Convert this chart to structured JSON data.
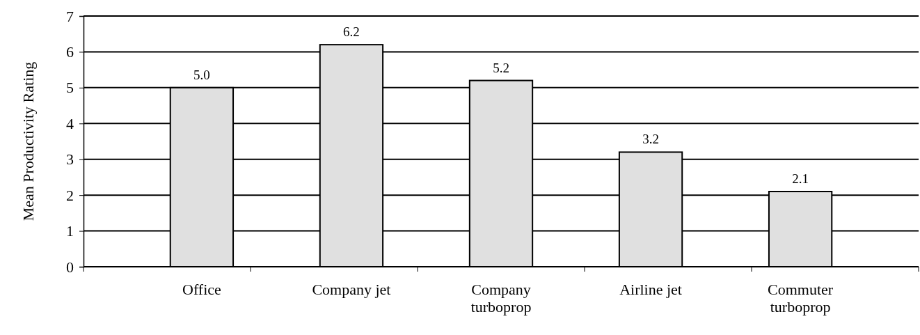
{
  "chart_data": {
    "type": "bar",
    "ylabel": "Mean Productivity Rating",
    "categories": [
      "Office",
      "Company jet",
      "Company turboprop",
      "Airline jet",
      "Commuter turboprop"
    ],
    "values": [
      5.0,
      6.2,
      5.2,
      3.2,
      2.1
    ],
    "value_labels": [
      "5.0",
      "6.2",
      "5.2",
      "3.2",
      "2.1"
    ],
    "color": "#e0e0e0",
    "ylim": [
      0,
      7
    ],
    "yticks": [
      0,
      1,
      2,
      3,
      4,
      5,
      6,
      7
    ],
    "grid": "y"
  }
}
